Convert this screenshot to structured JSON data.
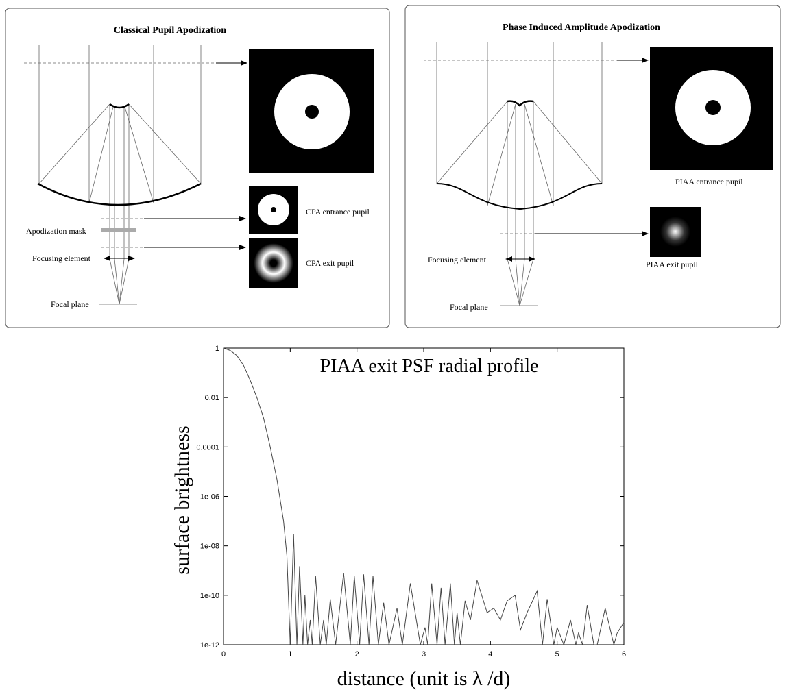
{
  "panels": [
    {
      "title": "Classical Pupil Apodization",
      "labels": {
        "mask": "Apodization mask",
        "focusing": "Focusing element",
        "focal": "Focal plane",
        "entrance": "CPA entrance pupil",
        "exit": "CPA exit pupil"
      }
    },
    {
      "title": "Phase Induced Amplitude Apodization",
      "labels": {
        "focusing": "Focusing element",
        "focal": "Focal plane",
        "entrance": "PIAA entrance pupil",
        "exit": "PIAA exit pupil"
      }
    }
  ],
  "chart_data": {
    "type": "line",
    "title": "PIAA exit PSF radial profile",
    "x_label": "distance (unit is λ /d)",
    "y_label": "surface brightness",
    "x": [
      0,
      0.1,
      0.2,
      0.3,
      0.4,
      0.5,
      0.6,
      0.7,
      0.8,
      0.9,
      0.95,
      1.0,
      1.05,
      1.1,
      1.14,
      1.19,
      1.22,
      1.26,
      1.3,
      1.33,
      1.38,
      1.45,
      1.5,
      1.54,
      1.6,
      1.68,
      1.8,
      1.9,
      1.96,
      2.04,
      2.1,
      2.18,
      2.24,
      2.32,
      2.4,
      2.48,
      2.6,
      2.68,
      2.8,
      2.95,
      3.02,
      3.06,
      3.12,
      3.2,
      3.26,
      3.32,
      3.4,
      3.46,
      3.5,
      3.55,
      3.62,
      3.7,
      3.8,
      3.95,
      4.05,
      4.15,
      4.25,
      4.37,
      4.45,
      4.55,
      4.7,
      4.78,
      4.85,
      4.95,
      5.0,
      5.1,
      5.2,
      5.28,
      5.32,
      5.38,
      5.45,
      5.55,
      5.6,
      5.72,
      5.85,
      5.9,
      6.0
    ],
    "values": [
      1,
      0.8,
      0.5,
      0.2,
      0.05,
      0.01,
      0.0015,
      0.0001,
      5e-06,
      1e-07,
      4e-09,
      1e-12,
      3e-08,
      1e-12,
      1.5e-09,
      1e-12,
      1e-10,
      1e-12,
      1e-11,
      1e-12,
      6e-10,
      1e-12,
      1e-11,
      1e-12,
      7e-11,
      1e-12,
      8e-10,
      1e-12,
      6e-10,
      1e-12,
      7e-10,
      1e-12,
      6e-10,
      1e-12,
      5e-11,
      1e-12,
      3e-11,
      1e-12,
      3e-10,
      1e-12,
      5e-12,
      1e-12,
      3e-10,
      1e-12,
      2e-10,
      1e-12,
      3e-10,
      1e-12,
      2e-11,
      1e-12,
      6e-11,
      1e-11,
      4e-10,
      2e-11,
      3e-11,
      1e-11,
      6e-11,
      1e-10,
      4e-12,
      2e-11,
      1.5e-10,
      1e-12,
      7e-11,
      1e-12,
      5e-12,
      1e-12,
      1e-11,
      1e-12,
      3e-12,
      1e-12,
      4e-11,
      1e-12,
      1e-12,
      3e-11,
      1e-12,
      3e-12,
      8e-12
    ],
    "color": "#444444",
    "yscale": "log",
    "xlim": [
      0,
      6
    ],
    "xticks": [
      0,
      1,
      2,
      3,
      4,
      5,
      6
    ],
    "ylim": [
      1e-12,
      1
    ],
    "yticks": [
      {
        "value": 1e-12,
        "label": "1e-12"
      },
      {
        "value": 1e-10,
        "label": "1e-10"
      },
      {
        "value": 1e-08,
        "label": "1e-08"
      },
      {
        "value": 1e-06,
        "label": "1e-06"
      },
      0.0001,
      0.01,
      1
    ]
  }
}
